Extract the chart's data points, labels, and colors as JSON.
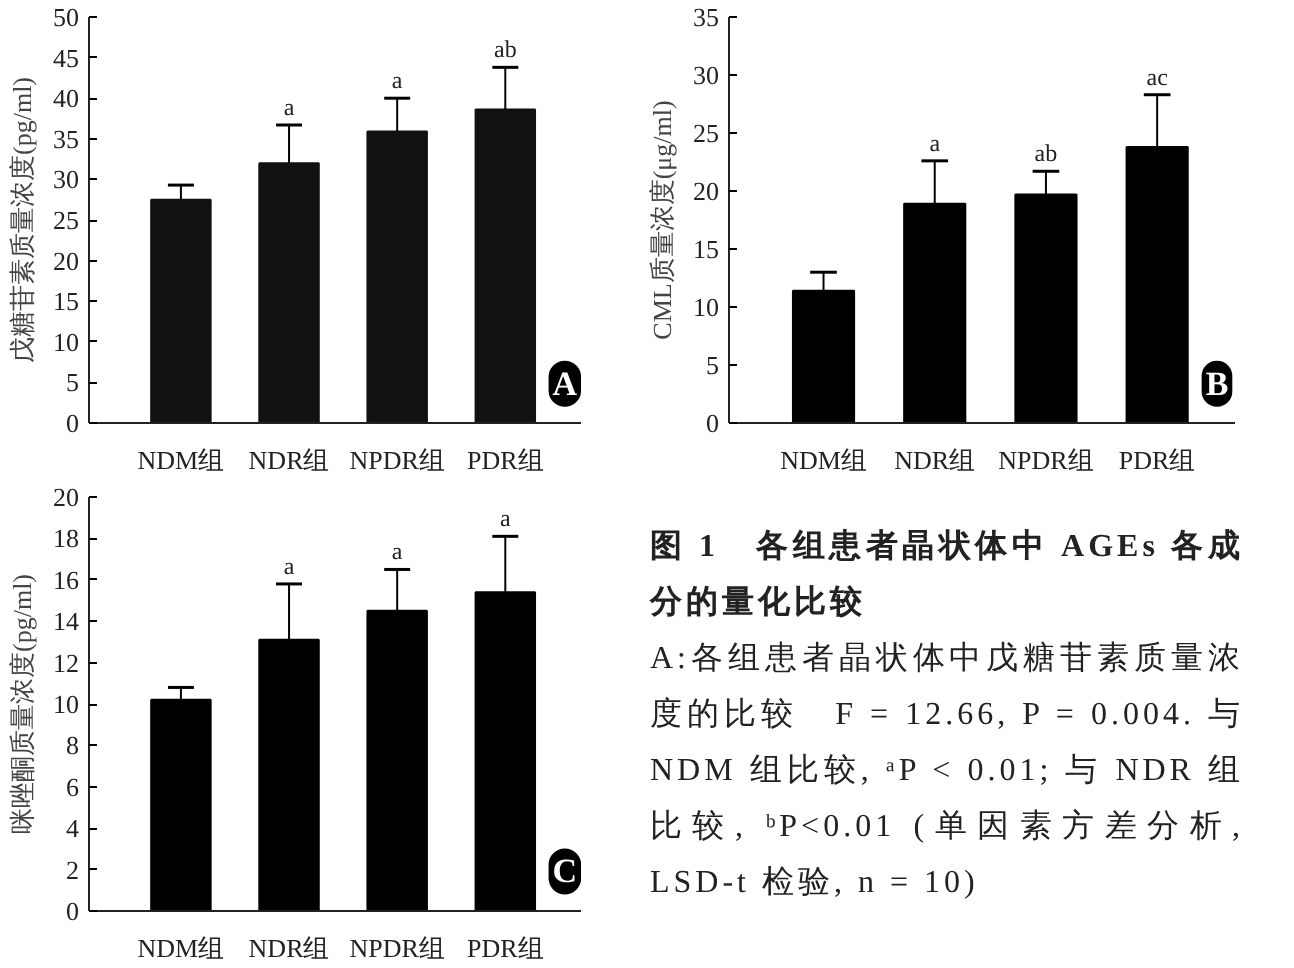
{
  "chart_data": [
    {
      "type": "bar",
      "categories": [
        "NDM组",
        "NDR组",
        "NPDR组",
        "PDR组"
      ],
      "values": [
        27.5,
        32,
        35.9,
        38.6
      ],
      "errors": [
        [
          27.5,
          29.3
        ],
        [
          32,
          36.7
        ],
        [
          35.9,
          40
        ],
        [
          38.6,
          43.8
        ]
      ],
      "value_labels": [
        null,
        "a",
        "a",
        "ab"
      ],
      "color": "#111111",
      "ylabel": "戊糖苷素质量浓度(pg/ml)",
      "ylim": [
        0,
        50
      ],
      "yticks": [
        0,
        5,
        10,
        15,
        20,
        25,
        30,
        35,
        40,
        45,
        50
      ],
      "grid": false,
      "annotations": [
        "A"
      ]
    },
    {
      "type": "bar",
      "categories": [
        "NDM组",
        "NDR组",
        "NPDR组",
        "PDR组"
      ],
      "values": [
        11.4,
        18.9,
        19.7,
        23.8
      ],
      "errors": [
        [
          11.4,
          13
        ],
        [
          18.9,
          22.6
        ],
        [
          19.7,
          21.7
        ],
        [
          23.8,
          28.3
        ]
      ],
      "value_labels": [
        null,
        "a",
        "ab",
        "ac"
      ],
      "color": "#000000",
      "ylabel": "CML质量浓度(μg/ml)",
      "ylim": [
        0,
        35
      ],
      "yticks": [
        0,
        5,
        10,
        15,
        20,
        25,
        30,
        35
      ],
      "grid": false,
      "annotations": [
        "B"
      ]
    },
    {
      "type": "bar",
      "categories": [
        "NDM组",
        "NDR组",
        "NPDR组",
        "PDR组"
      ],
      "values": [
        10.2,
        13.1,
        14.5,
        15.4
      ],
      "errors": [
        [
          10.2,
          10.8
        ],
        [
          13.1,
          15.8
        ],
        [
          14.5,
          16.5
        ],
        [
          15.4,
          18.1
        ]
      ],
      "value_labels": [
        null,
        "a",
        "a",
        "a"
      ],
      "color": "#000000",
      "ylabel": "咪唑酮质量浓度(pg/ml)",
      "ylim": [
        0,
        20
      ],
      "yticks": [
        0,
        2,
        4,
        6,
        8,
        10,
        12,
        14,
        16,
        18,
        20
      ],
      "grid": false,
      "annotations": [
        "C"
      ]
    },
    {
      "type": "other",
      "title": "图 1　各组患者晶状体中 AGEs 各成分的量化比较",
      "annotations": [
        "A:各组患者晶状体中戊糖苷素质量浓度的比较　F = 12.66, P = 0.004. 与 NDM 组比较, ᵃP < 0.01; 与 NDR 组比较, ᵇP<0.01 (单因素方差分析, LSD-t 检验, n = 10)"
      ]
    }
  ]
}
